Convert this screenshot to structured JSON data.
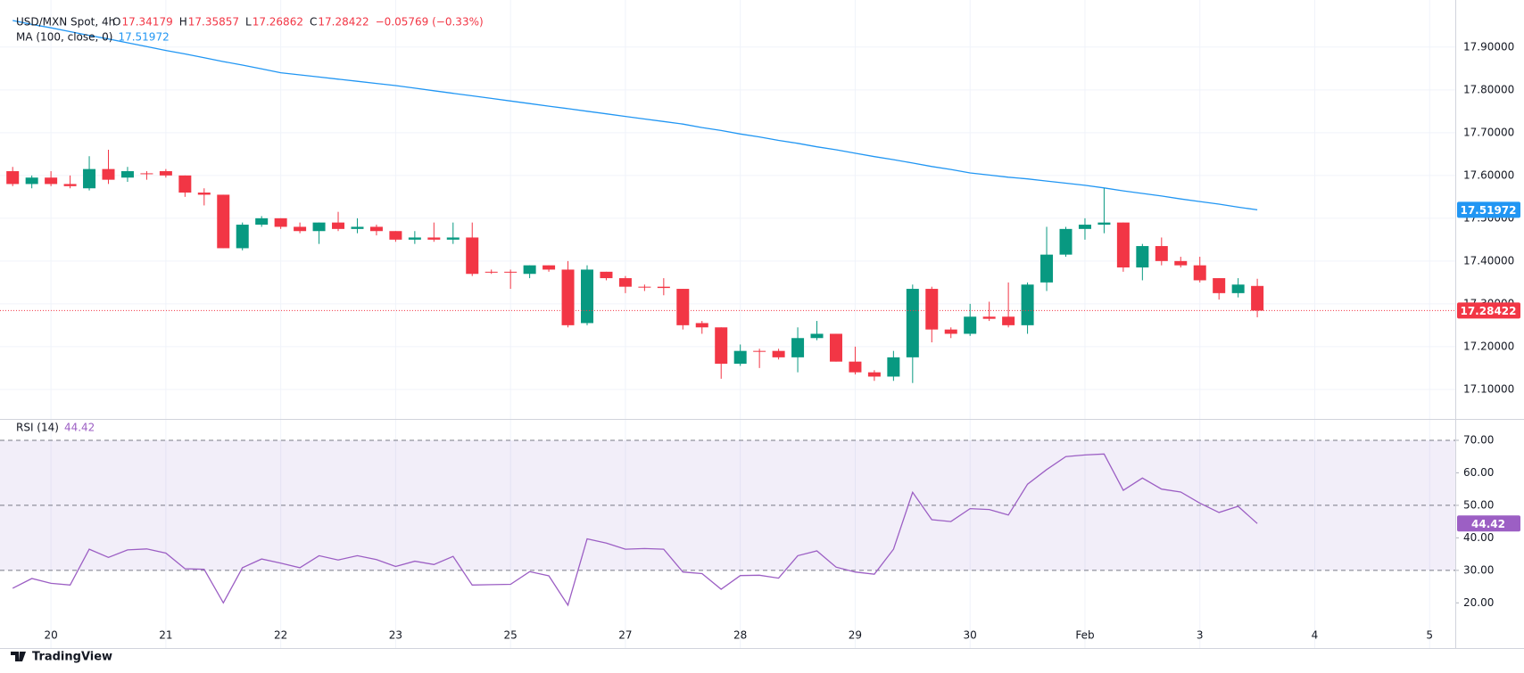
{
  "chart_data": {
    "type": "candlestick",
    "symbol": "USD/MXN Spot, 4h",
    "ohlc_labels": [
      "O",
      "H",
      "L",
      "C"
    ],
    "change": "−0.05769 (−0.33%)",
    "categories": [
      null,
      null,
      "20",
      null,
      null,
      null,
      null,
      null,
      "21",
      null,
      null,
      null,
      null,
      null,
      "22",
      null,
      null,
      null,
      null,
      null,
      "23",
      null,
      null,
      null,
      null,
      null,
      "25",
      null,
      null,
      null,
      null,
      null,
      "27",
      null,
      null,
      null,
      null,
      null,
      "28",
      null,
      null,
      null,
      null,
      null,
      "29",
      null,
      null,
      null,
      null,
      null,
      "30",
      null,
      null,
      null,
      null,
      null,
      "Feb",
      null,
      null,
      null,
      null,
      null,
      "3",
      null,
      null,
      null,
      null,
      null,
      "4",
      null,
      null,
      null,
      null,
      null,
      "5",
      null
    ],
    "open": [
      17.61,
      17.58,
      17.595,
      17.58,
      17.57,
      17.615,
      17.595,
      17.605,
      17.61,
      17.6,
      17.56,
      17.555,
      17.43,
      17.485,
      17.5,
      17.48,
      17.47,
      17.49,
      17.475,
      17.48,
      17.47,
      17.45,
      17.455,
      17.45,
      17.455,
      17.375,
      17.375,
      17.37,
      17.39,
      17.38,
      17.255,
      17.375,
      17.36,
      17.34,
      17.34,
      17.335,
      17.255,
      17.245,
      17.16,
      17.19,
      17.19,
      17.175,
      17.22,
      17.23,
      17.165,
      17.14,
      17.13,
      17.175,
      17.335,
      17.24,
      17.23,
      17.27,
      17.27,
      17.25,
      17.35,
      17.415,
      17.475,
      17.485,
      17.49,
      17.385,
      17.435,
      17.4,
      17.39,
      17.36,
      17.325,
      17.34179,
      null,
      null,
      null,
      null,
      null,
      null,
      null,
      null,
      null,
      null
    ],
    "high": [
      17.62,
      17.6,
      17.61,
      17.6,
      17.645,
      17.66,
      17.62,
      17.61,
      17.615,
      17.6,
      17.57,
      17.555,
      17.49,
      17.505,
      17.5,
      17.49,
      17.49,
      17.515,
      17.5,
      17.485,
      17.47,
      17.47,
      17.49,
      17.49,
      17.49,
      17.38,
      17.38,
      17.39,
      17.39,
      17.4,
      17.39,
      17.375,
      17.365,
      17.345,
      17.36,
      17.335,
      17.26,
      17.245,
      17.205,
      17.195,
      17.195,
      17.245,
      17.26,
      17.23,
      17.2,
      17.145,
      17.19,
      17.345,
      17.34,
      17.245,
      17.3,
      17.305,
      17.35,
      17.35,
      17.48,
      17.48,
      17.5,
      17.57,
      17.49,
      17.44,
      17.455,
      17.41,
      17.41,
      17.36,
      17.36,
      17.35857,
      null,
      null,
      null,
      null,
      null,
      null,
      null,
      null,
      null,
      null
    ],
    "low": [
      17.575,
      17.57,
      17.575,
      17.57,
      17.565,
      17.58,
      17.585,
      17.59,
      17.595,
      17.55,
      17.53,
      17.43,
      17.425,
      17.48,
      17.475,
      17.465,
      17.44,
      17.47,
      17.465,
      17.46,
      17.445,
      17.44,
      17.445,
      17.44,
      17.365,
      17.37,
      17.335,
      17.36,
      17.375,
      17.245,
      17.25,
      17.355,
      17.325,
      17.33,
      17.32,
      17.24,
      17.23,
      17.125,
      17.155,
      17.15,
      17.17,
      17.14,
      17.215,
      17.165,
      17.135,
      17.12,
      17.12,
      17.115,
      17.21,
      17.22,
      17.225,
      17.26,
      17.245,
      17.23,
      17.33,
      17.41,
      17.45,
      17.465,
      17.375,
      17.355,
      17.39,
      17.385,
      17.35,
      17.31,
      17.315,
      17.26862,
      null,
      null,
      null,
      null,
      null,
      null,
      null,
      null,
      null,
      null
    ],
    "close": [
      17.58,
      17.595,
      17.58,
      17.575,
      17.615,
      17.59,
      17.61,
      17.603,
      17.6,
      17.56,
      17.555,
      17.43,
      17.485,
      17.5,
      17.48,
      17.47,
      17.49,
      17.475,
      17.48,
      17.47,
      17.45,
      17.455,
      17.45,
      17.455,
      17.37,
      17.373,
      17.374,
      17.39,
      17.38,
      17.25,
      17.38,
      17.36,
      17.34,
      17.338,
      17.337,
      17.25,
      17.245,
      17.16,
      17.19,
      17.188,
      17.175,
      17.22,
      17.23,
      17.165,
      17.14,
      17.13,
      17.175,
      17.335,
      17.24,
      17.23,
      17.27,
      17.265,
      17.25,
      17.345,
      17.415,
      17.475,
      17.485,
      17.49,
      17.385,
      17.435,
      17.4,
      17.39,
      17.355,
      17.325,
      17.345,
      17.28422,
      null,
      null,
      null,
      null,
      null,
      null,
      null,
      null,
      null,
      null
    ],
    "up_color": "#089981",
    "down_color": "#f23645",
    "ylim": [
      17.031,
      18.01
    ],
    "yticks": [
      {
        "value": 17.1,
        "label": "17.10000"
      },
      {
        "value": 17.2,
        "label": "17.20000"
      },
      {
        "value": 17.3,
        "label": "17.30000"
      },
      {
        "value": 17.4,
        "label": "17.40000"
      },
      {
        "value": 17.5,
        "label": "17.50000"
      },
      {
        "value": 17.6,
        "label": "17.60000"
      },
      {
        "value": 17.7,
        "label": "17.70000"
      },
      {
        "value": 17.8,
        "label": "17.80000"
      },
      {
        "value": 17.9,
        "label": "17.90000"
      }
    ],
    "grid": true,
    "ma": {
      "name": "MA (100, close, 0)",
      "color": "#2196f3",
      "values": [
        17.962,
        17.953,
        17.945,
        17.936,
        17.927,
        17.919,
        17.91,
        17.901,
        17.892,
        17.884,
        17.875,
        17.866,
        17.858,
        17.849,
        17.84,
        17.835,
        17.83,
        17.825,
        17.82,
        17.815,
        17.81,
        17.804,
        17.798,
        17.792,
        17.786,
        17.78,
        17.774,
        17.768,
        17.762,
        17.756,
        17.75,
        17.744,
        17.738,
        17.732,
        17.726,
        17.72,
        17.712,
        17.705,
        17.697,
        17.69,
        17.682,
        17.675,
        17.667,
        17.66,
        17.652,
        17.644,
        17.637,
        17.629,
        17.621,
        17.614,
        17.606,
        17.601,
        17.596,
        17.592,
        17.587,
        17.582,
        17.577,
        17.571,
        17.564,
        17.558,
        17.552,
        17.545,
        17.539,
        17.533,
        17.526,
        17.51972,
        null,
        null,
        null,
        null,
        null,
        null,
        null,
        null,
        null,
        null
      ]
    },
    "rsi": {
      "name": "RSI (14)",
      "color": "#9c5fc4",
      "values": [
        24.5,
        27.5,
        26,
        25.5,
        36.5,
        34,
        36.3,
        36.6,
        35.3,
        30.5,
        30.3,
        20,
        30.8,
        33.5,
        32.2,
        30.8,
        34.5,
        33.2,
        34.5,
        33.3,
        31.2,
        32.8,
        31.8,
        34.3,
        25.5,
        25.6,
        25.7,
        29.6,
        28.3,
        19.3,
        39.7,
        38.4,
        36.5,
        36.7,
        36.5,
        29.5,
        29,
        24.2,
        28.4,
        28.5,
        27.6,
        34.5,
        36,
        31,
        29.5,
        28.8,
        36.5,
        54,
        45.6,
        45,
        49,
        48.7,
        47,
        56.5,
        61,
        65,
        65.5,
        65.8,
        54.6,
        58.4,
        55,
        54.1,
        50.7,
        47.8,
        49.7,
        44.42,
        null,
        null,
        null,
        null,
        null,
        null,
        null,
        null,
        null,
        null
      ],
      "ylim": [
        6.1,
        76.3
      ],
      "yticks": [
        {
          "value": 20,
          "label": "20.00"
        },
        {
          "value": 30,
          "label": "30.00"
        },
        {
          "value": 40,
          "label": "40.00"
        },
        {
          "value": 50,
          "label": "50.00"
        },
        {
          "value": 60,
          "label": "60.00"
        },
        {
          "value": 70,
          "label": "70.00"
        }
      ],
      "levels": [
        70,
        50,
        30
      ]
    }
  },
  "footer": {
    "brand": "TradingView"
  }
}
